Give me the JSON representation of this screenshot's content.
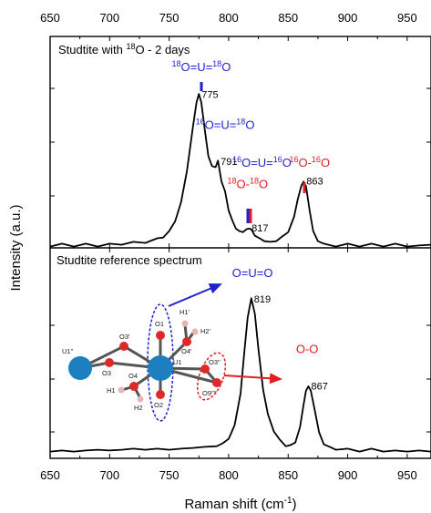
{
  "chart_data": {
    "type": "line",
    "xlabel": "Raman shift (cm",
    "xlabel_sup": "-1",
    "xlabel_end": ")",
    "ylabel": "Intensity (a.u.)",
    "xlim": [
      650,
      970
    ],
    "xticks": [
      "650",
      "700",
      "750",
      "800",
      "850",
      "900",
      "950"
    ],
    "panels": [
      {
        "title_pre": "Studtite with ",
        "title_sup": "18",
        "title_post": "O - 2 days",
        "peaks": [
          {
            "x": 775,
            "label": "775",
            "y": 0.84
          },
          {
            "x": 791,
            "label": "791",
            "y": 0.47
          },
          {
            "x": 817,
            "label": "817",
            "y": 0.1
          },
          {
            "x": 863,
            "label": "863",
            "y": 0.36
          }
        ],
        "series": [
          {
            "x": [
              650,
              660,
              670,
              680,
              690,
              700,
              710,
              720,
              730,
              740,
              745,
              750,
              755,
              760,
              765,
              770,
              773,
              775,
              777,
              780,
              783,
              786,
              789,
              791,
              794,
              797,
              800,
              803,
              806,
              809,
              812,
              815,
              817,
              819,
              822,
              826,
              830,
              835,
              840,
              845,
              850,
              855,
              858,
              861,
              863,
              865,
              868,
              871,
              875,
              880,
              890,
              900,
              910,
              920,
              930,
              940,
              950,
              960,
              970
            ],
            "y": [
              0.0,
              0.01,
              0.0,
              0.01,
              0.0,
              0.01,
              0.01,
              0.02,
              0.02,
              0.04,
              0.05,
              0.08,
              0.14,
              0.24,
              0.42,
              0.66,
              0.8,
              0.84,
              0.8,
              0.64,
              0.5,
              0.44,
              0.44,
              0.47,
              0.36,
              0.3,
              0.2,
              0.14,
              0.1,
              0.08,
              0.08,
              0.09,
              0.1,
              0.09,
              0.06,
              0.04,
              0.03,
              0.02,
              0.03,
              0.05,
              0.08,
              0.16,
              0.26,
              0.33,
              0.36,
              0.33,
              0.2,
              0.08,
              0.03,
              0.01,
              0.0,
              0.01,
              0.0,
              0.01,
              0.0,
              0.01,
              0.0,
              0.0,
              0.01
            ]
          }
        ],
        "annotations": [
          {
            "pre": "18",
            "a": "O=U=",
            "sup2": "18",
            "b": "O",
            "color": "#1f1fd0",
            "x": 777,
            "y": 0.97
          },
          {
            "pre": "16",
            "a": "O=U=",
            "sup2": "18",
            "b": "O",
            "color": "#1f1fd0",
            "x": 797,
            "y": 0.65
          },
          {
            "pre": "16",
            "a": "O=U=",
            "sup2": "16",
            "b": "O",
            "color": "#1f1fd0",
            "x": 828,
            "y": 0.44
          },
          {
            "pre": "18",
            "a": "O-",
            "sup2": "18",
            "b": "O",
            "color": "#e02020",
            "x": 816,
            "y": 0.32
          },
          {
            "pre": "16",
            "a": "O-",
            "sup2": "16",
            "b": "O",
            "color": "#e02020",
            "x": 868,
            "y": 0.44
          }
        ]
      },
      {
        "title": "Studtite reference spectrum",
        "peaks": [
          {
            "x": 819,
            "label": "819",
            "y": 0.86
          },
          {
            "x": 867,
            "label": "867",
            "y": 0.38
          }
        ],
        "series": [
          {
            "x": [
              650,
              660,
              670,
              680,
              690,
              700,
              710,
              720,
              730,
              740,
              750,
              760,
              770,
              780,
              790,
              795,
              800,
              805,
              810,
              813,
              816,
              819,
              822,
              825,
              829,
              833,
              838,
              843,
              848,
              852,
              856,
              860,
              863,
              865,
              867,
              869,
              872,
              876,
              880,
              885,
              890,
              900,
              910,
              920,
              930,
              940,
              950,
              960,
              970
            ],
            "y": [
              0.02,
              0.02,
              0.02,
              0.02,
              0.03,
              0.02,
              0.03,
              0.03,
              0.03,
              0.03,
              0.03,
              0.03,
              0.04,
              0.04,
              0.05,
              0.06,
              0.09,
              0.16,
              0.34,
              0.55,
              0.76,
              0.86,
              0.78,
              0.58,
              0.36,
              0.22,
              0.13,
              0.08,
              0.05,
              0.05,
              0.07,
              0.15,
              0.28,
              0.35,
              0.38,
              0.35,
              0.26,
              0.12,
              0.06,
              0.04,
              0.03,
              0.03,
              0.02,
              0.03,
              0.02,
              0.02,
              0.02,
              0.02,
              0.02
            ]
          }
        ],
        "annotations": [
          {
            "text": "O=U=O",
            "color": "#1f1fd0",
            "x": 820,
            "y": 0.98
          },
          {
            "text": "O-O",
            "color": "#e02020",
            "x": 866,
            "y": 0.56
          }
        ],
        "atom_labels": [
          "U1''",
          "O3'",
          "O3",
          "O1",
          "H1'",
          "O4'",
          "H2'",
          "U1",
          "O3''",
          "O9''''",
          "O4",
          "H1",
          "H2",
          "O2"
        ]
      }
    ]
  }
}
